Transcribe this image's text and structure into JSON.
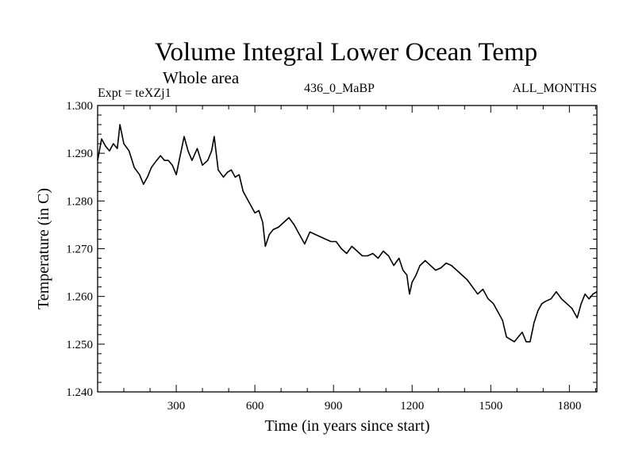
{
  "header": {
    "title": "Volume Integral Lower Ocean Temp",
    "subtitle": "Whole area",
    "expt_label": "Expt = teXZj1",
    "experiment_name": "436_0_MaBP",
    "months_label": "ALL_MONTHS"
  },
  "colors": {
    "line": "#000000",
    "background": "#ffffff"
  },
  "chart_data": {
    "type": "line",
    "title": "Volume Integral Lower Ocean Temp",
    "subtitle": "Whole area",
    "xlabel": "Time (in years since start)",
    "ylabel": "Temperature (in C)",
    "xlim": [
      0,
      1905
    ],
    "ylim": [
      1.24,
      1.3
    ],
    "xticks": [
      300,
      600,
      900,
      1200,
      1500,
      1800
    ],
    "xtick_labels": [
      "300",
      "600",
      "900",
      "1200",
      "1500",
      "1800"
    ],
    "yticks": [
      1.24,
      1.25,
      1.26,
      1.27,
      1.28,
      1.29,
      1.3
    ],
    "ytick_labels": [
      "1.240",
      "1.250",
      "1.260",
      "1.270",
      "1.280",
      "1.290",
      "1.300"
    ],
    "grid": false,
    "series": [
      {
        "name": "teXZj1",
        "x": [
          0,
          15,
          30,
          45,
          60,
          75,
          85,
          100,
          120,
          140,
          160,
          175,
          190,
          205,
          225,
          240,
          255,
          270,
          285,
          300,
          315,
          330,
          345,
          360,
          380,
          400,
          420,
          435,
          445,
          460,
          480,
          495,
          510,
          525,
          540,
          555,
          570,
          585,
          600,
          615,
          630,
          640,
          655,
          670,
          690,
          710,
          730,
          750,
          770,
          790,
          810,
          830,
          850,
          870,
          890,
          910,
          930,
          950,
          970,
          990,
          1010,
          1030,
          1050,
          1070,
          1090,
          1110,
          1130,
          1150,
          1165,
          1180,
          1190,
          1200,
          1215,
          1230,
          1250,
          1270,
          1290,
          1310,
          1330,
          1350,
          1370,
          1390,
          1410,
          1430,
          1450,
          1470,
          1490,
          1510,
          1530,
          1545,
          1560,
          1575,
          1590,
          1605,
          1620,
          1635,
          1650,
          1665,
          1680,
          1695,
          1710,
          1730,
          1750,
          1770,
          1790,
          1810,
          1830,
          1845,
          1860,
          1875,
          1890,
          1905
        ],
        "y": [
          1.2885,
          1.293,
          1.2915,
          1.2905,
          1.292,
          1.291,
          1.296,
          1.292,
          1.2905,
          1.287,
          1.2855,
          1.2835,
          1.285,
          1.287,
          1.2885,
          1.2895,
          1.2885,
          1.2885,
          1.2875,
          1.2855,
          1.2895,
          1.2935,
          1.2905,
          1.2885,
          1.291,
          1.2875,
          1.2885,
          1.2905,
          1.2935,
          1.2865,
          1.285,
          1.286,
          1.2865,
          1.285,
          1.2855,
          1.282,
          1.2805,
          1.279,
          1.2775,
          1.278,
          1.2755,
          1.2705,
          1.273,
          1.274,
          1.2745,
          1.2755,
          1.2765,
          1.275,
          1.273,
          1.271,
          1.2735,
          1.273,
          1.2725,
          1.272,
          1.2715,
          1.2715,
          1.27,
          1.269,
          1.2705,
          1.2695,
          1.2685,
          1.2685,
          1.269,
          1.268,
          1.2695,
          1.2685,
          1.2665,
          1.268,
          1.2655,
          1.2645,
          1.2605,
          1.263,
          1.2645,
          1.2665,
          1.2675,
          1.2665,
          1.2655,
          1.266,
          1.267,
          1.2665,
          1.2655,
          1.2645,
          1.2635,
          1.262,
          1.2605,
          1.2615,
          1.2595,
          1.2585,
          1.2565,
          1.255,
          1.2515,
          1.251,
          1.2505,
          1.2515,
          1.2525,
          1.2505,
          1.2505,
          1.2545,
          1.257,
          1.2585,
          1.259,
          1.2595,
          1.261,
          1.2595,
          1.2585,
          1.2575,
          1.2555,
          1.2585,
          1.2605,
          1.2595,
          1.2605,
          1.261
        ]
      }
    ]
  }
}
